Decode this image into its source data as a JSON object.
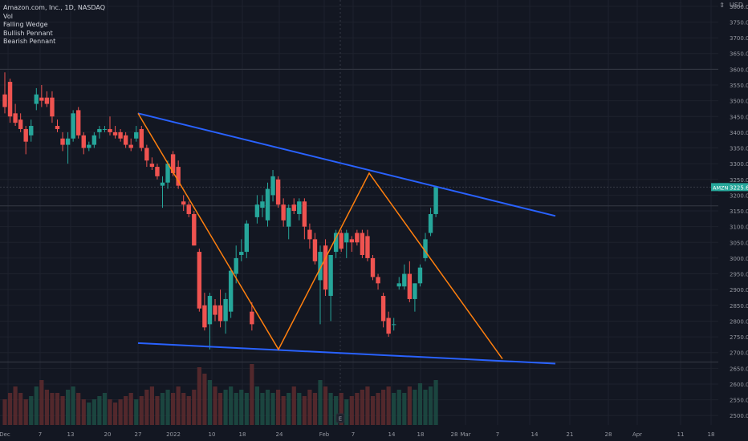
{
  "legend": {
    "symbol": "Amazon.com, Inc., 1D, NASDAQ",
    "items": [
      "Vol",
      "Falling Wedge",
      "Bullish Pennant",
      "Bearish Pennant"
    ]
  },
  "header_right": {
    "currency": "USD",
    "menu_glyph": "⇕"
  },
  "price_axis": {
    "labels": [
      "3800.00",
      "3750.00",
      "3700.00",
      "3650.00",
      "3600.00",
      "3550.00",
      "3500.00",
      "3450.00",
      "3400.00",
      "3350.00",
      "3300.00",
      "3250.00",
      "3200.00",
      "3150.00",
      "3100.00",
      "3050.00",
      "3000.00",
      "2950.00",
      "2900.00",
      "2850.00",
      "2800.00",
      "2750.00",
      "2700.00",
      "2650.00",
      "2600.00",
      "2550.00",
      "2500.00"
    ],
    "last_price_label": "3225.60",
    "ticker_badge": "AMZN"
  },
  "time_axis": {
    "labels": [
      "Dec",
      "7",
      "13",
      "20",
      "27",
      "2022",
      "10",
      "18",
      "24",
      "Feb",
      "7",
      "14",
      "18",
      "28",
      "Mar",
      "7",
      "14",
      "21",
      "28",
      "Apr",
      "11",
      "18"
    ]
  },
  "earnings_marker": "E",
  "colors": {
    "background": "#131722",
    "up": "#26a69a",
    "down": "#ef5350",
    "wedge_line": "#2962ff",
    "zigzag": "#ff7f0e",
    "grid": "#1e222d",
    "axis_text": "#9598a1"
  },
  "chart_data": {
    "type": "candlestick",
    "y_range": [
      2470,
      3820
    ],
    "x_labels": [
      "Dec",
      "7",
      "13",
      "20",
      "27",
      "2022",
      "10",
      "18",
      "24",
      "Feb",
      "7",
      "14",
      "18",
      "28",
      "Mar",
      "7",
      "14",
      "21",
      "28",
      "Apr",
      "11",
      "18"
    ],
    "candles": [
      {
        "o": 3520,
        "h": 3590,
        "l": 3460,
        "c": 3480
      },
      {
        "o": 3560,
        "h": 3570,
        "l": 3430,
        "c": 3450
      },
      {
        "o": 3460,
        "h": 3490,
        "l": 3420,
        "c": 3430
      },
      {
        "o": 3440,
        "h": 3460,
        "l": 3400,
        "c": 3410
      },
      {
        "o": 3410,
        "h": 3420,
        "l": 3330,
        "c": 3370
      },
      {
        "o": 3390,
        "h": 3440,
        "l": 3370,
        "c": 3420
      },
      {
        "o": 3490,
        "h": 3540,
        "l": 3470,
        "c": 3520
      },
      {
        "o": 3510,
        "h": 3550,
        "l": 3480,
        "c": 3500
      },
      {
        "o": 3510,
        "h": 3530,
        "l": 3480,
        "c": 3490
      },
      {
        "o": 3510,
        "h": 3530,
        "l": 3430,
        "c": 3450
      },
      {
        "o": 3420,
        "h": 3440,
        "l": 3400,
        "c": 3410
      },
      {
        "o": 3380,
        "h": 3400,
        "l": 3340,
        "c": 3360
      },
      {
        "o": 3360,
        "h": 3400,
        "l": 3300,
        "c": 3380
      },
      {
        "o": 3380,
        "h": 3470,
        "l": 3370,
        "c": 3460
      },
      {
        "o": 3470,
        "h": 3480,
        "l": 3380,
        "c": 3390
      },
      {
        "o": 3390,
        "h": 3400,
        "l": 3330,
        "c": 3350
      },
      {
        "o": 3350,
        "h": 3370,
        "l": 3340,
        "c": 3360
      },
      {
        "o": 3360,
        "h": 3400,
        "l": 3350,
        "c": 3390
      },
      {
        "o": 3400,
        "h": 3420,
        "l": 3380,
        "c": 3410
      },
      {
        "o": 3410,
        "h": 3420,
        "l": 3400,
        "c": 3410
      },
      {
        "o": 3410,
        "h": 3450,
        "l": 3390,
        "c": 3400
      },
      {
        "o": 3400,
        "h": 3420,
        "l": 3380,
        "c": 3390
      },
      {
        "o": 3400,
        "h": 3410,
        "l": 3370,
        "c": 3380
      },
      {
        "o": 3390,
        "h": 3400,
        "l": 3350,
        "c": 3360
      },
      {
        "o": 3360,
        "h": 3380,
        "l": 3340,
        "c": 3350
      },
      {
        "o": 3380,
        "h": 3420,
        "l": 3370,
        "c": 3400
      },
      {
        "o": 3410,
        "h": 3420,
        "l": 3340,
        "c": 3350
      },
      {
        "o": 3350,
        "h": 3360,
        "l": 3290,
        "c": 3310
      },
      {
        "o": 3300,
        "h": 3320,
        "l": 3280,
        "c": 3290
      },
      {
        "o": 3290,
        "h": 3300,
        "l": 3250,
        "c": 3260
      },
      {
        "o": 3230,
        "h": 3260,
        "l": 3160,
        "c": 3240
      },
      {
        "o": 3240,
        "h": 3310,
        "l": 3220,
        "c": 3300
      },
      {
        "o": 3330,
        "h": 3340,
        "l": 3260,
        "c": 3270
      },
      {
        "o": 3290,
        "h": 3310,
        "l": 3220,
        "c": 3230
      },
      {
        "o": 3180,
        "h": 3200,
        "l": 3150,
        "c": 3170
      },
      {
        "o": 3170,
        "h": 3180,
        "l": 3130,
        "c": 3140
      },
      {
        "o": 3140,
        "h": 3150,
        "l": 3040,
        "c": 3040
      },
      {
        "o": 3020,
        "h": 3030,
        "l": 2830,
        "c": 2840
      },
      {
        "o": 2850,
        "h": 2890,
        "l": 2770,
        "c": 2780
      },
      {
        "o": 2790,
        "h": 2890,
        "l": 2710,
        "c": 2880
      },
      {
        "o": 2850,
        "h": 2870,
        "l": 2800,
        "c": 2820
      },
      {
        "o": 2850,
        "h": 2900,
        "l": 2780,
        "c": 2800
      },
      {
        "o": 2800,
        "h": 2890,
        "l": 2760,
        "c": 2870
      },
      {
        "o": 2830,
        "h": 2970,
        "l": 2810,
        "c": 2960
      },
      {
        "o": 2950,
        "h": 3040,
        "l": 2920,
        "c": 3000
      },
      {
        "o": 3010,
        "h": 3060,
        "l": 2990,
        "c": 3020
      },
      {
        "o": 3020,
        "h": 3120,
        "l": 3000,
        "c": 3110
      },
      {
        "o": 2830,
        "h": 2860,
        "l": 2770,
        "c": 2790
      },
      {
        "o": 3130,
        "h": 3200,
        "l": 3110,
        "c": 3170
      },
      {
        "o": 3160,
        "h": 3200,
        "l": 3130,
        "c": 3180
      },
      {
        "o": 3120,
        "h": 3240,
        "l": 3100,
        "c": 3220
      },
      {
        "o": 3200,
        "h": 3280,
        "l": 3180,
        "c": 3260
      },
      {
        "o": 3250,
        "h": 3260,
        "l": 3160,
        "c": 3170
      },
      {
        "o": 3170,
        "h": 3190,
        "l": 3100,
        "c": 3120
      },
      {
        "o": 3100,
        "h": 3170,
        "l": 3060,
        "c": 3160
      },
      {
        "o": 3170,
        "h": 3190,
        "l": 3140,
        "c": 3150
      },
      {
        "o": 3140,
        "h": 3190,
        "l": 3120,
        "c": 3180
      },
      {
        "o": 3180,
        "h": 3190,
        "l": 3060,
        "c": 3100
      },
      {
        "o": 3090,
        "h": 3110,
        "l": 3030,
        "c": 3060
      },
      {
        "o": 3060,
        "h": 3080,
        "l": 2980,
        "c": 2990
      },
      {
        "o": 2930,
        "h": 3040,
        "l": 2790,
        "c": 3020
      },
      {
        "o": 3040,
        "h": 3060,
        "l": 2880,
        "c": 2900
      },
      {
        "o": 2880,
        "h": 3000,
        "l": 2800,
        "c": 3010
      },
      {
        "o": 3020,
        "h": 3090,
        "l": 3000,
        "c": 3080
      },
      {
        "o": 3080,
        "h": 3090,
        "l": 3020,
        "c": 3030
      },
      {
        "o": 3050,
        "h": 3090,
        "l": 3000,
        "c": 3080
      },
      {
        "o": 3060,
        "h": 3070,
        "l": 3020,
        "c": 3050
      },
      {
        "o": 3080,
        "h": 3090,
        "l": 3040,
        "c": 3050
      },
      {
        "o": 3080,
        "h": 3090,
        "l": 3000,
        "c": 3010
      },
      {
        "o": 3070,
        "h": 3090,
        "l": 2990,
        "c": 3000
      },
      {
        "o": 3000,
        "h": 3010,
        "l": 2930,
        "c": 2940
      },
      {
        "o": 2940,
        "h": 2950,
        "l": 2900,
        "c": 2920
      },
      {
        "o": 2880,
        "h": 2890,
        "l": 2780,
        "c": 2800
      },
      {
        "o": 2810,
        "h": 2830,
        "l": 2750,
        "c": 2760
      },
      {
        "o": 2790,
        "h": 2810,
        "l": 2770,
        "c": 2790
      },
      {
        "o": 2910,
        "h": 2940,
        "l": 2900,
        "c": 2920
      },
      {
        "o": 2910,
        "h": 2980,
        "l": 2900,
        "c": 2950
      },
      {
        "o": 2950,
        "h": 2990,
        "l": 2860,
        "c": 2870
      },
      {
        "o": 2870,
        "h": 2920,
        "l": 2830,
        "c": 2920
      },
      {
        "o": 2920,
        "h": 2980,
        "l": 2910,
        "c": 2970
      },
      {
        "o": 3000,
        "h": 3080,
        "l": 2990,
        "c": 3060
      },
      {
        "o": 3080,
        "h": 3160,
        "l": 3070,
        "c": 3140
      },
      {
        "o": 3140,
        "h": 3230,
        "l": 3130,
        "c": 3225.6
      }
    ],
    "volume_levels": [
      0.4,
      0.5,
      0.6,
      0.5,
      0.4,
      0.45,
      0.6,
      0.7,
      0.55,
      0.5,
      0.5,
      0.45,
      0.55,
      0.6,
      0.5,
      0.4,
      0.35,
      0.4,
      0.45,
      0.5,
      0.4,
      0.35,
      0.4,
      0.45,
      0.5,
      0.4,
      0.45,
      0.55,
      0.6,
      0.45,
      0.5,
      0.55,
      0.5,
      0.6,
      0.5,
      0.45,
      0.55,
      0.9,
      0.8,
      0.7,
      0.6,
      0.5,
      0.55,
      0.6,
      0.5,
      0.55,
      0.5,
      0.95,
      0.6,
      0.5,
      0.55,
      0.5,
      0.55,
      0.45,
      0.5,
      0.6,
      0.5,
      0.45,
      0.55,
      0.5,
      0.7,
      0.6,
      0.5,
      0.45,
      0.5,
      0.4,
      0.45,
      0.5,
      0.55,
      0.6,
      0.45,
      0.5,
      0.55,
      0.6,
      0.5,
      0.55,
      0.5,
      0.6,
      0.55,
      0.65,
      0.55,
      0.6,
      0.7
    ]
  }
}
